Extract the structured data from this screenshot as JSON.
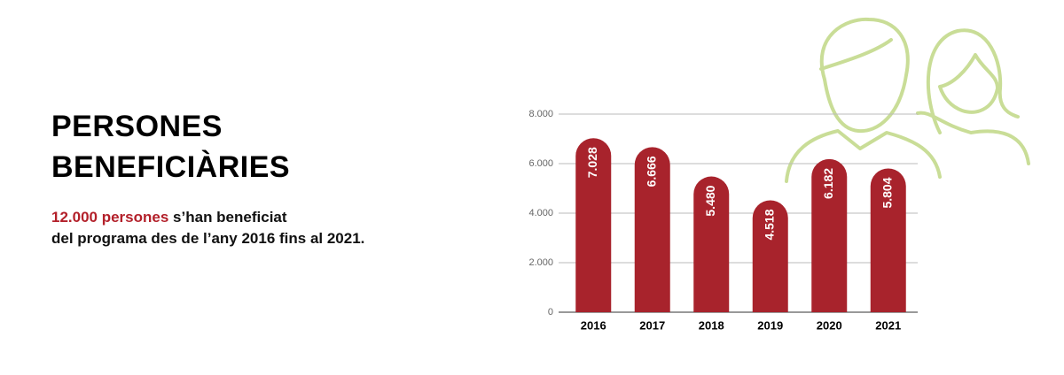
{
  "chart_data": {
    "type": "bar",
    "title_lines": [
      "PERSONES",
      "BENEFICIÀRIES"
    ],
    "subtitle_highlight": "12.000 persones",
    "subtitle_lines": [
      "s’han beneficiat",
      "del programa des de l’any 2016 fins al 2021."
    ],
    "categories": [
      "2016",
      "2017",
      "2018",
      "2019",
      "2020",
      "2021"
    ],
    "values": [
      7028,
      6666,
      5480,
      4518,
      6182,
      5804
    ],
    "value_labels": [
      "7.028",
      "6.666",
      "5.480",
      "4.518",
      "6.182",
      "5.804"
    ],
    "color": "#a8232c",
    "ylim": [
      0,
      8000
    ],
    "yticks": [
      0,
      {
        "value": 2000,
        "label": "2.000"
      },
      {
        "value": 4000,
        "label": "4.000"
      },
      {
        "value": 6000,
        "label": "6.000"
      },
      {
        "value": 8000,
        "label": "8.000"
      }
    ],
    "grid": true
  }
}
